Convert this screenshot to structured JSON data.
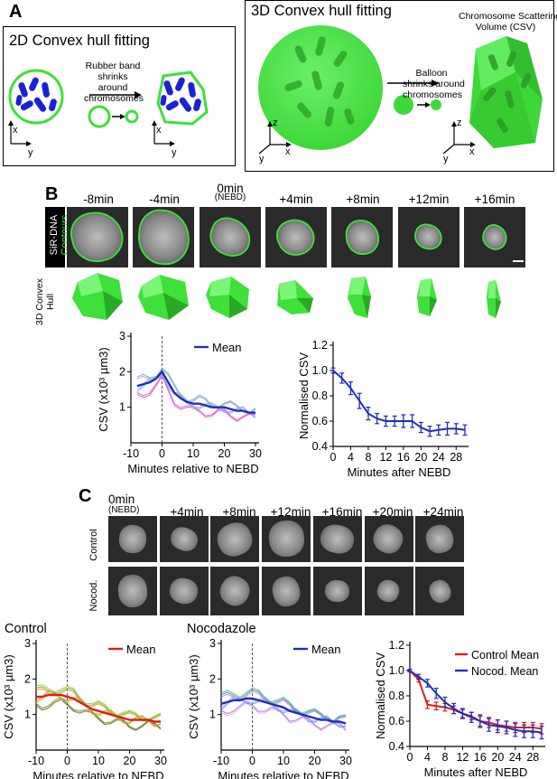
{
  "panels": {
    "A": "A",
    "B": "B",
    "C": "C"
  },
  "panelA": {
    "left_title": "2D Convex hull fitting",
    "left_arrow_text": [
      "Rubber band",
      "shrinks around",
      "chromosomes"
    ],
    "right_title": "3D Convex hull fitting",
    "right_arrow_text": [
      "Balloon",
      "shrinks around",
      "chromosomes"
    ],
    "csv_label": [
      "Chromosome Scattering",
      "Volume (CSV)"
    ],
    "axes_2d": {
      "a": "x",
      "b": "y"
    },
    "axes_3d": {
      "a": "z",
      "b": "x",
      "c": "y"
    }
  },
  "panelB": {
    "timepoints": [
      "-8min",
      "-4min",
      "0min",
      "+4min",
      "+8min",
      "+12min",
      "+16min"
    ],
    "nebd_note": "(NEBD)",
    "row_label_a": "SiR-DNA",
    "row_label_b": "Contours",
    "hull_label_a": "3D Convex",
    "hull_label_b": "Hull"
  },
  "panelC": {
    "timepoints": [
      "0min",
      "+4min",
      "+8min",
      "+12min",
      "+16min",
      "+20min",
      "+24min"
    ],
    "nebd_note": "(NEBD)",
    "row_control": "Control",
    "row_nocod": "Nocod.",
    "title_control": "Control",
    "title_nocod": "Nocodazole"
  },
  "colors": {
    "mean_blue": "#1f2fb8",
    "mean_red": "#e01b1b",
    "green": "#3ee03a",
    "chromosome": "#1a22d6"
  },
  "chart_data": [
    {
      "id": "B-left",
      "type": "line",
      "ylabel": "CSV (x10³ µm3)",
      "xlabel": "Minutes relative to NEBD",
      "xlim": [
        -10,
        30
      ],
      "ylim": [
        0,
        3
      ],
      "xticks": [
        "-10",
        "0",
        "10",
        "20",
        "30"
      ],
      "yticks": [
        "1",
        "2",
        "3"
      ],
      "legend": "Mean",
      "x": [
        -8,
        -6,
        -4,
        -2,
        0,
        2,
        4,
        6,
        8,
        10,
        12,
        14,
        16,
        18,
        20,
        22,
        24,
        26,
        28,
        30
      ],
      "mean": [
        1.6,
        1.65,
        1.7,
        1.8,
        2.0,
        1.7,
        1.4,
        1.25,
        1.15,
        1.1,
        1.1,
        1.05,
        1.0,
        1.0,
        1.0,
        0.95,
        0.9,
        0.9,
        0.85,
        0.85
      ]
    },
    {
      "id": "B-right",
      "type": "line",
      "ylabel": "Normalised CSV",
      "xlabel": "Minutes after NEBD",
      "xlim": [
        0,
        30
      ],
      "ylim": [
        0.4,
        1.2
      ],
      "xticks": [
        "0",
        "4",
        "8",
        "12",
        "16",
        "20",
        "24",
        "28"
      ],
      "yticks": [
        "0.4",
        "0.6",
        "0.8",
        "1.0",
        "1.2"
      ],
      "x": [
        0,
        2,
        4,
        6,
        8,
        10,
        12,
        14,
        16,
        18,
        20,
        22,
        24,
        26,
        28,
        30
      ],
      "y": [
        1.0,
        0.94,
        0.86,
        0.76,
        0.66,
        0.62,
        0.6,
        0.6,
        0.6,
        0.6,
        0.55,
        0.52,
        0.53,
        0.54,
        0.54,
        0.53
      ],
      "err": [
        0.02,
        0.04,
        0.05,
        0.06,
        0.05,
        0.04,
        0.04,
        0.04,
        0.05,
        0.05,
        0.04,
        0.04,
        0.04,
        0.05,
        0.04,
        0.04
      ]
    },
    {
      "id": "C-left",
      "type": "line",
      "ylabel": "CSV (x10³ µm3)",
      "xlabel": "Minutes relative to NEBD",
      "xlim": [
        -10,
        30
      ],
      "ylim": [
        0,
        3
      ],
      "xticks": [
        "-10",
        "0",
        "10",
        "20",
        "30"
      ],
      "yticks": [
        "1",
        "2",
        "3"
      ],
      "legend": "Mean",
      "x": [
        -10,
        -8,
        -6,
        -4,
        -2,
        0,
        2,
        4,
        6,
        8,
        10,
        12,
        14,
        16,
        18,
        20,
        22,
        24,
        26,
        28,
        30
      ],
      "mean": [
        1.5,
        1.5,
        1.55,
        1.55,
        1.55,
        1.5,
        1.45,
        1.35,
        1.25,
        1.15,
        1.1,
        1.05,
        1.0,
        0.95,
        0.9,
        0.85,
        0.85,
        0.85,
        0.85,
        0.8,
        0.8
      ]
    },
    {
      "id": "C-middle",
      "type": "line",
      "ylabel": "CSV (x10³ µm3)",
      "xlabel": "Minutes relative to NEBD",
      "xlim": [
        -10,
        30
      ],
      "ylim": [
        0,
        3
      ],
      "xticks": [
        "-10",
        "0",
        "10",
        "20",
        "30"
      ],
      "yticks": [
        "1",
        "2",
        "3"
      ],
      "legend": "Mean",
      "x": [
        -10,
        -8,
        -6,
        -4,
        -2,
        0,
        2,
        4,
        6,
        8,
        10,
        12,
        14,
        16,
        18,
        20,
        22,
        24,
        26,
        28,
        30
      ],
      "mean": [
        1.3,
        1.35,
        1.4,
        1.4,
        1.45,
        1.45,
        1.4,
        1.35,
        1.3,
        1.25,
        1.2,
        1.1,
        1.05,
        1.0,
        0.95,
        0.9,
        0.85,
        0.85,
        0.8,
        0.8,
        0.75
      ]
    },
    {
      "id": "C-right",
      "type": "line",
      "ylabel": "Normalised CSV",
      "xlabel": "Minutes after NEBD",
      "xlim": [
        0,
        30
      ],
      "ylim": [
        0.4,
        1.2
      ],
      "xticks": [
        "0",
        "4",
        "8",
        "12",
        "16",
        "20",
        "24",
        "28"
      ],
      "yticks": [
        "0.4",
        "0.6",
        "0.8",
        "1.0",
        "1.2"
      ],
      "series": [
        {
          "name": "Control Mean",
          "x": [
            0,
            2,
            4,
            6,
            8,
            10,
            12,
            14,
            16,
            18,
            20,
            22,
            24,
            26,
            28,
            30
          ],
          "y": [
            1.0,
            0.93,
            0.73,
            0.72,
            0.71,
            0.69,
            0.66,
            0.64,
            0.6,
            0.59,
            0.57,
            0.56,
            0.55,
            0.55,
            0.55,
            0.54
          ],
          "err": [
            0.01,
            0.02,
            0.03,
            0.03,
            0.03,
            0.03,
            0.03,
            0.03,
            0.04,
            0.04,
            0.04,
            0.04,
            0.04,
            0.04,
            0.04,
            0.04
          ]
        },
        {
          "name": "Nocod. Mean",
          "x": [
            0,
            2,
            4,
            6,
            8,
            10,
            12,
            14,
            16,
            18,
            20,
            22,
            24,
            26,
            28,
            30
          ],
          "y": [
            1.0,
            0.95,
            0.9,
            0.82,
            0.75,
            0.7,
            0.66,
            0.63,
            0.6,
            0.57,
            0.56,
            0.55,
            0.53,
            0.52,
            0.52,
            0.51
          ],
          "err": [
            0.01,
            0.02,
            0.03,
            0.04,
            0.04,
            0.04,
            0.04,
            0.04,
            0.05,
            0.05,
            0.05,
            0.05,
            0.05,
            0.05,
            0.05,
            0.05
          ]
        }
      ]
    }
  ]
}
